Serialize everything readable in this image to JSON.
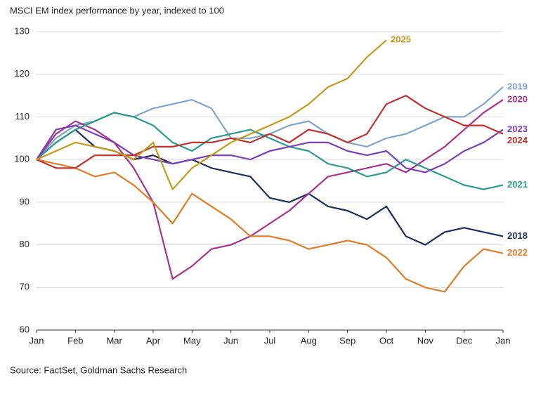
{
  "chart_data": {
    "type": "line",
    "title": "MSCI EM index performance by year, indexed to 100",
    "source": "Source: FactSet, Goldman Sachs Research",
    "x": [
      0,
      0.5,
      1,
      1.5,
      2,
      2.5,
      3,
      3.5,
      4,
      4.5,
      5,
      5.5,
      6,
      6.5,
      7,
      7.5,
      8,
      8.5,
      9,
      9.5,
      10,
      10.5,
      11,
      11.5,
      12
    ],
    "xlim": [
      0,
      12
    ],
    "xticks": [
      {
        "value": 0,
        "label": "Jan"
      },
      {
        "value": 1,
        "label": "Feb"
      },
      {
        "value": 2,
        "label": "Mar"
      },
      {
        "value": 3,
        "label": "Apr"
      },
      {
        "value": 4,
        "label": "May"
      },
      {
        "value": 5,
        "label": "Jun"
      },
      {
        "value": 6,
        "label": "Jul"
      },
      {
        "value": 7,
        "label": "Aug"
      },
      {
        "value": 8,
        "label": "Sep"
      },
      {
        "value": 9,
        "label": "Oct"
      },
      {
        "value": 10,
        "label": "Nov"
      },
      {
        "value": 11,
        "label": "Dec"
      },
      {
        "value": 12,
        "label": "Jan"
      }
    ],
    "ylim": [
      60,
      130
    ],
    "yticks": [
      60,
      70,
      80,
      90,
      100,
      110,
      120,
      130
    ],
    "grid": true,
    "series": [
      {
        "name": "2018",
        "color": "#1b2f5e",
        "values": [
          100,
          104,
          107,
          103,
          102,
          100,
          101,
          99,
          100,
          98,
          97,
          96,
          91,
          90,
          92,
          89,
          88,
          86,
          89,
          82,
          80,
          83,
          84,
          83,
          82
        ]
      },
      {
        "name": "2019",
        "color": "#7fa3d0",
        "values": [
          100,
          105,
          108,
          109,
          111,
          110,
          112,
          113,
          114,
          112,
          105,
          105,
          106,
          108,
          109,
          106,
          104,
          103,
          105,
          106,
          108,
          110,
          110,
          113,
          117
        ]
      },
      {
        "name": "2020",
        "color": "#a8338d",
        "values": [
          100,
          106,
          109,
          107,
          104,
          98,
          90,
          72,
          75,
          79,
          80,
          82,
          85,
          88,
          92,
          96,
          97,
          98,
          99,
          97,
          100,
          103,
          107,
          111,
          114
        ]
      },
      {
        "name": "2021",
        "color": "#2a9a8e",
        "values": [
          100,
          104,
          107,
          109,
          111,
          110,
          108,
          104,
          102,
          105,
          106,
          107,
          105,
          103,
          102,
          99,
          98,
          96,
          97,
          100,
          98,
          96,
          94,
          93,
          94
        ]
      },
      {
        "name": "2022",
        "color": "#e07b27",
        "values": [
          100,
          99,
          98,
          96,
          97,
          94,
          90,
          85,
          92,
          89,
          86,
          82,
          82,
          81,
          79,
          80,
          81,
          80,
          77,
          72,
          70,
          69,
          75,
          79,
          78
        ]
      },
      {
        "name": "2023",
        "color": "#7b3fb5",
        "values": [
          100,
          107,
          108,
          106,
          104,
          101,
          100,
          99,
          100,
          101,
          101,
          100,
          102,
          103,
          104,
          104,
          102,
          101,
          102,
          98,
          97,
          99,
          102,
          104,
          107
        ]
      },
      {
        "name": "2024",
        "color": "#c0302e",
        "values": [
          100,
          98,
          98,
          101,
          101,
          101,
          103,
          103,
          104,
          104,
          105,
          104,
          106,
          104,
          107,
          106,
          104,
          106,
          113,
          115,
          112,
          110,
          108,
          108,
          106
        ]
      },
      {
        "name": "2025",
        "color": "#c49a1a",
        "values": [
          100,
          102,
          104,
          103,
          102,
          100,
          104,
          93,
          98,
          101,
          104,
          106,
          108,
          110,
          113,
          117,
          119,
          124,
          128,
          null,
          null,
          null,
          null,
          null,
          null
        ]
      }
    ]
  }
}
